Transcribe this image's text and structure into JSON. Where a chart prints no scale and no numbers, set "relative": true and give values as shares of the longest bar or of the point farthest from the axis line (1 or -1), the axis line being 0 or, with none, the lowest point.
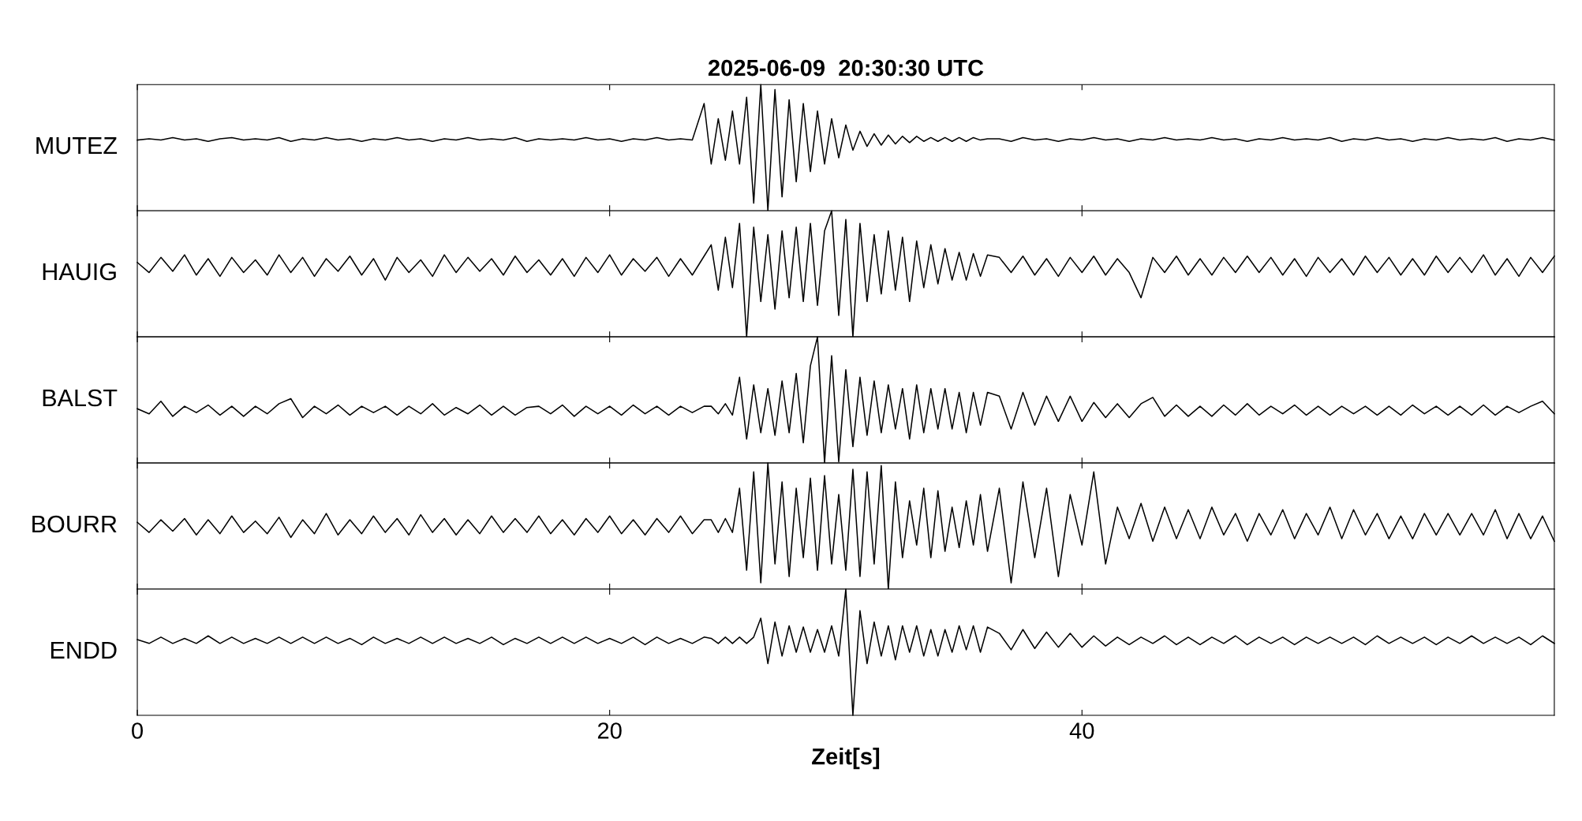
{
  "chart_data": [
    {
      "type": "line",
      "title": "2025-06-09  20:30:30 UTC",
      "ylabel": "MUTEZ",
      "relative": true,
      "xlim": [
        0,
        60
      ],
      "xticks": [
        0,
        20,
        40
      ],
      "tick_labels": false,
      "x": [
        0,
        0.5,
        1,
        1.5,
        2,
        2.5,
        3,
        3.5,
        4,
        4.5,
        5,
        5.5,
        6,
        6.5,
        7,
        7.5,
        8,
        8.5,
        9,
        9.5,
        10,
        10.5,
        11,
        11.5,
        12,
        12.5,
        13,
        13.5,
        14,
        14.5,
        15,
        15.5,
        16,
        16.5,
        17,
        17.5,
        18,
        18.5,
        19,
        19.5,
        20,
        20.5,
        21,
        21.5,
        22,
        22.5,
        23,
        23.5,
        24,
        24.3,
        24.6,
        24.9,
        25.2,
        25.5,
        25.8,
        26.1,
        26.4,
        26.7,
        27,
        27.3,
        27.6,
        27.9,
        28.2,
        28.5,
        28.8,
        29.1,
        29.4,
        29.7,
        30,
        30.3,
        30.6,
        30.9,
        31.2,
        31.5,
        31.8,
        32.1,
        32.4,
        32.7,
        33,
        33.3,
        33.6,
        33.9,
        34.2,
        34.5,
        34.8,
        35.1,
        35.4,
        35.7,
        36,
        36.5,
        37,
        37.5,
        38,
        38.5,
        39,
        39.5,
        40,
        40.5,
        41,
        41.5,
        42,
        42.5,
        43,
        43.5,
        44,
        44.5,
        45,
        45.5,
        46,
        46.5,
        47,
        47.5,
        48,
        48.5,
        49,
        49.5,
        50,
        50.5,
        51,
        51.5,
        52,
        52.5,
        53,
        53.5,
        54,
        54.5,
        55,
        55.5,
        56,
        56.5,
        57,
        57.5,
        58,
        58.5,
        59,
        59.5,
        60
      ],
      "series": [
        {
          "color": "#000000",
          "values": [
            0.56,
            0.57,
            0.56,
            0.58,
            0.56,
            0.57,
            0.55,
            0.57,
            0.58,
            0.56,
            0.57,
            0.56,
            0.58,
            0.55,
            0.57,
            0.56,
            0.58,
            0.56,
            0.57,
            0.55,
            0.57,
            0.56,
            0.58,
            0.56,
            0.57,
            0.55,
            0.57,
            0.56,
            0.58,
            0.56,
            0.57,
            0.56,
            0.58,
            0.55,
            0.57,
            0.56,
            0.57,
            0.56,
            0.58,
            0.56,
            0.57,
            0.55,
            0.57,
            0.56,
            0.58,
            0.56,
            0.57,
            0.56,
            0.85,
            0.37,
            0.73,
            0.4,
            0.79,
            0.37,
            0.9,
            0.06,
            1,
            0,
            0.96,
            0.11,
            0.88,
            0.23,
            0.85,
            0.31,
            0.79,
            0.37,
            0.73,
            0.42,
            0.68,
            0.48,
            0.63,
            0.51,
            0.61,
            0.52,
            0.6,
            0.53,
            0.59,
            0.54,
            0.59,
            0.55,
            0.58,
            0.55,
            0.58,
            0.55,
            0.58,
            0.55,
            0.58,
            0.56,
            0.57,
            0.57,
            0.55,
            0.58,
            0.56,
            0.57,
            0.55,
            0.57,
            0.56,
            0.58,
            0.56,
            0.57,
            0.55,
            0.57,
            0.56,
            0.58,
            0.56,
            0.57,
            0.56,
            0.58,
            0.56,
            0.57,
            0.55,
            0.57,
            0.56,
            0.58,
            0.56,
            0.57,
            0.56,
            0.58,
            0.55,
            0.57,
            0.56,
            0.58,
            0.56,
            0.57,
            0.55,
            0.57,
            0.56,
            0.58,
            0.56,
            0.57,
            0.56,
            0.58,
            0.55,
            0.57,
            0.56,
            0.58,
            0.56
          ]
        }
      ]
    },
    {
      "type": "line",
      "ylabel": "HAUIG",
      "relative": true,
      "xlim": [
        0,
        60
      ],
      "xticks": [
        0,
        20,
        40
      ],
      "tick_labels": false,
      "x": [
        0,
        0.5,
        1,
        1.5,
        2,
        2.5,
        3,
        3.5,
        4,
        4.5,
        5,
        5.5,
        6,
        6.5,
        7,
        7.5,
        8,
        8.5,
        9,
        9.5,
        10,
        10.5,
        11,
        11.5,
        12,
        12.5,
        13,
        13.5,
        14,
        14.5,
        15,
        15.5,
        16,
        16.5,
        17,
        17.5,
        18,
        18.5,
        19,
        19.5,
        20,
        20.5,
        21,
        21.5,
        22,
        22.5,
        23,
        23.5,
        24,
        24.3,
        24.6,
        24.9,
        25.2,
        25.5,
        25.8,
        26.1,
        26.4,
        26.7,
        27,
        27.3,
        27.6,
        27.9,
        28.2,
        28.5,
        28.8,
        29.1,
        29.4,
        29.7,
        30,
        30.3,
        30.6,
        30.9,
        31.2,
        31.5,
        31.8,
        32.1,
        32.4,
        32.7,
        33,
        33.3,
        33.6,
        33.9,
        34.2,
        34.5,
        34.8,
        35.1,
        35.4,
        35.7,
        36,
        36.5,
        37,
        37.5,
        38,
        38.5,
        39,
        39.5,
        40,
        40.5,
        41,
        41.5,
        42,
        42.5,
        43,
        43.5,
        44,
        44.5,
        45,
        45.5,
        46,
        46.5,
        47,
        47.5,
        48,
        48.5,
        49,
        49.5,
        50,
        50.5,
        51,
        51.5,
        52,
        52.5,
        53,
        53.5,
        54,
        54.5,
        55,
        55.5,
        56,
        56.5,
        57,
        57.5,
        58,
        58.5,
        59,
        59.5,
        60
      ],
      "series": [
        {
          "color": "#000000",
          "values": [
            0.59,
            0.51,
            0.63,
            0.52,
            0.65,
            0.49,
            0.62,
            0.48,
            0.63,
            0.51,
            0.61,
            0.49,
            0.65,
            0.51,
            0.63,
            0.48,
            0.62,
            0.52,
            0.64,
            0.49,
            0.62,
            0.45,
            0.63,
            0.51,
            0.61,
            0.48,
            0.65,
            0.51,
            0.63,
            0.52,
            0.62,
            0.49,
            0.64,
            0.51,
            0.61,
            0.49,
            0.62,
            0.48,
            0.63,
            0.51,
            0.65,
            0.49,
            0.62,
            0.52,
            0.63,
            0.48,
            0.62,
            0.49,
            0.64,
            0.73,
            0.37,
            0.79,
            0.39,
            0.9,
            0,
            0.87,
            0.28,
            0.81,
            0.22,
            0.84,
            0.31,
            0.87,
            0.28,
            0.9,
            0.25,
            0.84,
            1,
            0.17,
            0.93,
            0,
            0.9,
            0.28,
            0.81,
            0.34,
            0.84,
            0.37,
            0.79,
            0.28,
            0.76,
            0.39,
            0.73,
            0.42,
            0.7,
            0.45,
            0.67,
            0.45,
            0.66,
            0.48,
            0.65,
            0.63,
            0.51,
            0.64,
            0.49,
            0.62,
            0.48,
            0.63,
            0.51,
            0.64,
            0.49,
            0.62,
            0.51,
            0.31,
            0.63,
            0.51,
            0.64,
            0.49,
            0.62,
            0.49,
            0.63,
            0.51,
            0.64,
            0.51,
            0.63,
            0.49,
            0.62,
            0.48,
            0.63,
            0.51,
            0.62,
            0.49,
            0.64,
            0.51,
            0.63,
            0.49,
            0.62,
            0.49,
            0.64,
            0.51,
            0.63,
            0.51,
            0.65,
            0.49,
            0.62,
            0.48,
            0.63,
            0.51,
            0.64
          ]
        }
      ]
    },
    {
      "type": "line",
      "ylabel": "BALST",
      "relative": true,
      "xlim": [
        0,
        60
      ],
      "xticks": [
        0,
        20,
        40
      ],
      "tick_labels": false,
      "x": [
        0,
        0.5,
        1,
        1.5,
        2,
        2.5,
        3,
        3.5,
        4,
        4.5,
        5,
        5.5,
        6,
        6.5,
        7,
        7.5,
        8,
        8.5,
        9,
        9.5,
        10,
        10.5,
        11,
        11.5,
        12,
        12.5,
        13,
        13.5,
        14,
        14.5,
        15,
        15.5,
        16,
        16.5,
        17,
        17.5,
        18,
        18.5,
        19,
        19.5,
        20,
        20.5,
        21,
        21.5,
        22,
        22.5,
        23,
        23.5,
        24,
        24.3,
        24.6,
        24.9,
        25.2,
        25.5,
        25.8,
        26.1,
        26.4,
        26.7,
        27,
        27.3,
        27.6,
        27.9,
        28.2,
        28.5,
        28.8,
        29.1,
        29.4,
        29.7,
        30,
        30.3,
        30.6,
        30.9,
        31.2,
        31.5,
        31.8,
        32.1,
        32.4,
        32.7,
        33,
        33.3,
        33.6,
        33.9,
        34.2,
        34.5,
        34.8,
        35.1,
        35.4,
        35.7,
        36,
        36.5,
        37,
        37.5,
        38,
        38.5,
        39,
        39.5,
        40,
        40.5,
        41,
        41.5,
        42,
        42.5,
        43,
        43.5,
        44,
        44.5,
        45,
        45.5,
        46,
        46.5,
        47,
        47.5,
        48,
        48.5,
        49,
        49.5,
        50,
        50.5,
        51,
        51.5,
        52,
        52.5,
        53,
        53.5,
        54,
        54.5,
        55,
        55.5,
        56,
        56.5,
        57,
        57.5,
        58,
        58.5,
        59,
        59.5,
        60
      ],
      "series": [
        {
          "color": "#000000",
          "values": [
            0.43,
            0.39,
            0.49,
            0.37,
            0.45,
            0.4,
            0.46,
            0.38,
            0.45,
            0.37,
            0.45,
            0.39,
            0.47,
            0.51,
            0.36,
            0.45,
            0.39,
            0.46,
            0.38,
            0.45,
            0.4,
            0.45,
            0.38,
            0.45,
            0.39,
            0.47,
            0.38,
            0.44,
            0.39,
            0.46,
            0.38,
            0.45,
            0.38,
            0.44,
            0.45,
            0.39,
            0.46,
            0.37,
            0.45,
            0.39,
            0.45,
            0.38,
            0.46,
            0.39,
            0.45,
            0.38,
            0.45,
            0.4,
            0.45,
            0.45,
            0.39,
            0.47,
            0.38,
            0.68,
            0.19,
            0.62,
            0.24,
            0.59,
            0.22,
            0.65,
            0.24,
            0.71,
            0.16,
            0.77,
            1,
            0,
            0.85,
            0.01,
            0.74,
            0.13,
            0.68,
            0.22,
            0.65,
            0.24,
            0.62,
            0.27,
            0.59,
            0.19,
            0.62,
            0.24,
            0.59,
            0.27,
            0.59,
            0.27,
            0.56,
            0.24,
            0.56,
            0.3,
            0.56,
            0.53,
            0.27,
            0.56,
            0.3,
            0.53,
            0.33,
            0.53,
            0.33,
            0.48,
            0.36,
            0.47,
            0.36,
            0.47,
            0.52,
            0.37,
            0.46,
            0.37,
            0.45,
            0.37,
            0.46,
            0.38,
            0.47,
            0.38,
            0.45,
            0.39,
            0.46,
            0.38,
            0.45,
            0.38,
            0.45,
            0.39,
            0.45,
            0.38,
            0.45,
            0.38,
            0.46,
            0.39,
            0.45,
            0.38,
            0.45,
            0.38,
            0.46,
            0.38,
            0.45,
            0.4,
            0.45,
            0.49,
            0.39
          ]
        }
      ]
    },
    {
      "type": "line",
      "ylabel": "BOURR",
      "relative": true,
      "xlim": [
        0,
        60
      ],
      "xticks": [
        0,
        20,
        40
      ],
      "tick_labels": false,
      "x": [
        0,
        0.5,
        1,
        1.5,
        2,
        2.5,
        3,
        3.5,
        4,
        4.5,
        5,
        5.5,
        6,
        6.5,
        7,
        7.5,
        8,
        8.5,
        9,
        9.5,
        10,
        10.5,
        11,
        11.5,
        12,
        12.5,
        13,
        13.5,
        14,
        14.5,
        15,
        15.5,
        16,
        16.5,
        17,
        17.5,
        18,
        18.5,
        19,
        19.5,
        20,
        20.5,
        21,
        21.5,
        22,
        22.5,
        23,
        23.5,
        24,
        24.3,
        24.6,
        24.9,
        25.2,
        25.5,
        25.8,
        26.1,
        26.4,
        26.7,
        27,
        27.3,
        27.6,
        27.9,
        28.2,
        28.5,
        28.8,
        29.1,
        29.4,
        29.7,
        30,
        30.3,
        30.6,
        30.9,
        31.2,
        31.5,
        31.8,
        32.1,
        32.4,
        32.7,
        33,
        33.3,
        33.6,
        33.9,
        34.2,
        34.5,
        34.8,
        35.1,
        35.4,
        35.7,
        36,
        36.5,
        37,
        37.5,
        38,
        38.5,
        39,
        39.5,
        40,
        40.5,
        41,
        41.5,
        42,
        42.5,
        43,
        43.5,
        44,
        44.5,
        45,
        45.5,
        46,
        46.5,
        47,
        47.5,
        48,
        48.5,
        49,
        49.5,
        50,
        50.5,
        51,
        51.5,
        52,
        52.5,
        53,
        53.5,
        54,
        54.5,
        55,
        55.5,
        56,
        56.5,
        57,
        57.5,
        58,
        58.5,
        59,
        59.5,
        60
      ],
      "series": [
        {
          "color": "#000000",
          "values": [
            0.53,
            0.45,
            0.55,
            0.46,
            0.56,
            0.43,
            0.55,
            0.44,
            0.58,
            0.45,
            0.54,
            0.44,
            0.57,
            0.41,
            0.55,
            0.44,
            0.6,
            0.43,
            0.55,
            0.44,
            0.58,
            0.45,
            0.56,
            0.43,
            0.59,
            0.45,
            0.56,
            0.43,
            0.55,
            0.44,
            0.58,
            0.45,
            0.56,
            0.45,
            0.58,
            0.44,
            0.55,
            0.43,
            0.56,
            0.45,
            0.58,
            0.44,
            0.55,
            0.43,
            0.56,
            0.45,
            0.58,
            0.44,
            0.55,
            0.55,
            0.45,
            0.56,
            0.45,
            0.8,
            0.15,
            0.93,
            0.05,
            1,
            0.2,
            0.85,
            0.1,
            0.8,
            0.25,
            0.88,
            0.15,
            0.9,
            0.2,
            0.75,
            0.15,
            0.95,
            0.1,
            0.93,
            0.2,
            0.98,
            0,
            0.85,
            0.25,
            0.7,
            0.35,
            0.8,
            0.25,
            0.78,
            0.3,
            0.65,
            0.33,
            0.7,
            0.35,
            0.75,
            0.3,
            0.8,
            0.05,
            0.85,
            0.25,
            0.8,
            0.1,
            0.75,
            0.35,
            0.93,
            0.2,
            0.65,
            0.4,
            0.68,
            0.38,
            0.65,
            0.4,
            0.63,
            0.4,
            0.65,
            0.43,
            0.6,
            0.38,
            0.6,
            0.43,
            0.63,
            0.4,
            0.6,
            0.43,
            0.65,
            0.4,
            0.63,
            0.43,
            0.6,
            0.4,
            0.58,
            0.4,
            0.6,
            0.43,
            0.6,
            0.43,
            0.6,
            0.43,
            0.63,
            0.4,
            0.6,
            0.4,
            0.58,
            0.38
          ]
        }
      ]
    },
    {
      "type": "line",
      "ylabel": "ENDD",
      "xlabel": "Zeit[s]",
      "relative": true,
      "xlim": [
        0,
        60
      ],
      "xticks": [
        0,
        20,
        40
      ],
      "tick_labels": "x",
      "x": [
        0,
        0.5,
        1,
        1.5,
        2,
        2.5,
        3,
        3.5,
        4,
        4.5,
        5,
        5.5,
        6,
        6.5,
        7,
        7.5,
        8,
        8.5,
        9,
        9.5,
        10,
        10.5,
        11,
        11.5,
        12,
        12.5,
        13,
        13.5,
        14,
        14.5,
        15,
        15.5,
        16,
        16.5,
        17,
        17.5,
        18,
        18.5,
        19,
        19.5,
        20,
        20.5,
        21,
        21.5,
        22,
        22.5,
        23,
        23.5,
        24,
        24.3,
        24.6,
        24.9,
        25.2,
        25.5,
        25.8,
        26.1,
        26.4,
        26.7,
        27,
        27.3,
        27.6,
        27.9,
        28.2,
        28.5,
        28.8,
        29.1,
        29.4,
        29.7,
        30,
        30.3,
        30.6,
        30.9,
        31.2,
        31.5,
        31.8,
        32.1,
        32.4,
        32.7,
        33,
        33.3,
        33.6,
        33.9,
        34.2,
        34.5,
        34.8,
        35.1,
        35.4,
        35.7,
        36,
        36.5,
        37,
        37.5,
        38,
        38.5,
        39,
        39.5,
        40,
        40.5,
        41,
        41.5,
        42,
        42.5,
        43,
        43.5,
        44,
        44.5,
        45,
        45.5,
        46,
        46.5,
        47,
        47.5,
        48,
        48.5,
        49,
        49.5,
        50,
        50.5,
        51,
        51.5,
        52,
        52.5,
        53,
        53.5,
        54,
        54.5,
        55,
        55.5,
        56,
        56.5,
        57,
        57.5,
        58,
        58.5,
        59,
        59.5,
        60
      ],
      "series": [
        {
          "color": "#000000",
          "values": [
            0.6,
            0.57,
            0.62,
            0.57,
            0.61,
            0.57,
            0.63,
            0.57,
            0.62,
            0.57,
            0.61,
            0.57,
            0.62,
            0.57,
            0.62,
            0.57,
            0.62,
            0.57,
            0.61,
            0.56,
            0.62,
            0.57,
            0.61,
            0.57,
            0.62,
            0.57,
            0.62,
            0.57,
            0.61,
            0.57,
            0.62,
            0.56,
            0.61,
            0.57,
            0.62,
            0.57,
            0.62,
            0.57,
            0.62,
            0.57,
            0.61,
            0.57,
            0.62,
            0.56,
            0.62,
            0.57,
            0.61,
            0.57,
            0.62,
            0.61,
            0.57,
            0.62,
            0.57,
            0.62,
            0.57,
            0.62,
            0.77,
            0.41,
            0.74,
            0.47,
            0.71,
            0.5,
            0.7,
            0.5,
            0.68,
            0.5,
            0.71,
            0.47,
            1,
            0,
            0.83,
            0.41,
            0.74,
            0.47,
            0.71,
            0.44,
            0.71,
            0.5,
            0.71,
            0.47,
            0.68,
            0.47,
            0.68,
            0.5,
            0.71,
            0.52,
            0.71,
            0.5,
            0.7,
            0.65,
            0.52,
            0.68,
            0.53,
            0.66,
            0.54,
            0.65,
            0.54,
            0.63,
            0.55,
            0.62,
            0.56,
            0.62,
            0.57,
            0.63,
            0.56,
            0.62,
            0.56,
            0.62,
            0.57,
            0.63,
            0.56,
            0.62,
            0.57,
            0.62,
            0.56,
            0.62,
            0.57,
            0.62,
            0.57,
            0.62,
            0.56,
            0.63,
            0.57,
            0.62,
            0.57,
            0.62,
            0.56,
            0.62,
            0.57,
            0.63,
            0.57,
            0.62,
            0.57,
            0.62,
            0.56,
            0.63,
            0.57
          ]
        }
      ]
    }
  ]
}
